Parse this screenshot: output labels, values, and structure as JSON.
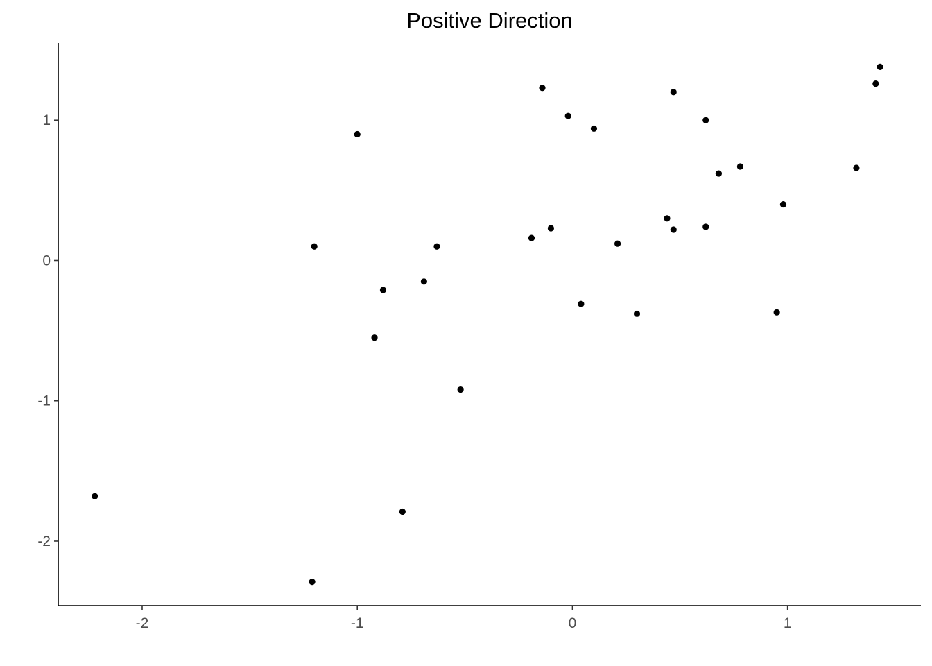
{
  "chart_data": {
    "type": "scatter",
    "title": "Positive Direction",
    "xlabel": "",
    "ylabel": "",
    "xlim": [
      -2.39,
      1.62
    ],
    "ylim": [
      -2.46,
      1.55
    ],
    "x_ticks": [
      -2,
      -1,
      0,
      1
    ],
    "y_ticks": [
      -2,
      -1,
      0,
      1
    ],
    "x_tick_labels": [
      "-2",
      "-1",
      "0",
      "1"
    ],
    "y_tick_labels": [
      "-2",
      "-1",
      "0",
      "1"
    ],
    "grid": false,
    "legend": "none",
    "point_color": "#000000",
    "points": [
      {
        "x": -2.22,
        "y": -1.68
      },
      {
        "x": -1.21,
        "y": -2.29
      },
      {
        "x": -1.2,
        "y": 0.1
      },
      {
        "x": -1.0,
        "y": 0.9
      },
      {
        "x": -0.92,
        "y": -0.55
      },
      {
        "x": -0.88,
        "y": -0.21
      },
      {
        "x": -0.79,
        "y": -1.79
      },
      {
        "x": -0.69,
        "y": -0.15
      },
      {
        "x": -0.63,
        "y": 0.1
      },
      {
        "x": -0.52,
        "y": -0.92
      },
      {
        "x": -0.19,
        "y": 0.16
      },
      {
        "x": -0.14,
        "y": 1.23
      },
      {
        "x": -0.1,
        "y": 0.23
      },
      {
        "x": -0.02,
        "y": 1.03
      },
      {
        "x": 0.04,
        "y": -0.31
      },
      {
        "x": 0.1,
        "y": 0.94
      },
      {
        "x": 0.21,
        "y": 0.12
      },
      {
        "x": 0.3,
        "y": -0.38
      },
      {
        "x": 0.44,
        "y": 0.3
      },
      {
        "x": 0.47,
        "y": 1.2
      },
      {
        "x": 0.47,
        "y": 0.22
      },
      {
        "x": 0.62,
        "y": 1.0
      },
      {
        "x": 0.62,
        "y": 0.24
      },
      {
        "x": 0.68,
        "y": 0.62
      },
      {
        "x": 0.78,
        "y": 0.67
      },
      {
        "x": 0.95,
        "y": -0.37
      },
      {
        "x": 0.98,
        "y": 0.4
      },
      {
        "x": 1.32,
        "y": 0.66
      },
      {
        "x": 1.41,
        "y": 1.26
      },
      {
        "x": 1.43,
        "y": 1.38
      }
    ]
  }
}
